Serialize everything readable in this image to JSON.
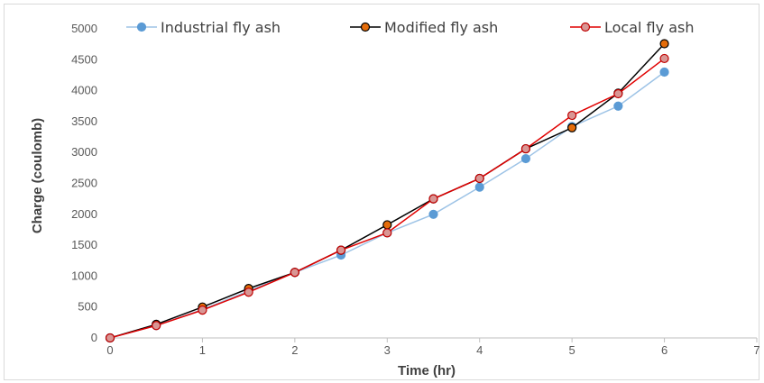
{
  "chart_data": {
    "type": "line",
    "title": "",
    "xlabel": "Time (hr)",
    "ylabel": "Charge (coulomb)",
    "xlim": [
      0,
      7
    ],
    "ylim": [
      0,
      5000
    ],
    "xticks": [
      "0",
      "1",
      "2",
      "3",
      "4",
      "5",
      "6",
      "7"
    ],
    "yticks": [
      "0",
      "500",
      "1000",
      "1500",
      "2000",
      "2500",
      "3000",
      "3500",
      "4000",
      "4500",
      "5000"
    ],
    "x": [
      0,
      0.5,
      1,
      1.5,
      2,
      2.5,
      3,
      3.5,
      4,
      4.5,
      5,
      5.5,
      6
    ],
    "grid": false,
    "legend_position": "top",
    "series": [
      {
        "name": "Industrial fly ash",
        "line_color": "#9dc3e6",
        "marker_fill": "#5b9bd5",
        "marker_stroke": "#5b9bd5",
        "values": [
          0,
          200,
          460,
          760,
          1060,
          1340,
          1700,
          2000,
          2440,
          2900,
          3420,
          3750,
          4300
        ]
      },
      {
        "name": "Modified fly ash",
        "line_color": "#000000",
        "marker_fill": "#e46c0a",
        "marker_stroke": "#000000",
        "values": [
          0,
          220,
          500,
          800,
          1060,
          1420,
          1830,
          2250,
          2580,
          3060,
          3400,
          3960,
          4760
        ]
      },
      {
        "name": "Local fly ash",
        "line_color": "#e00000",
        "marker_fill": "#d99694",
        "marker_stroke": "#c00000",
        "values": [
          0,
          200,
          450,
          740,
          1060,
          1420,
          1700,
          2250,
          2580,
          3060,
          3600,
          3950,
          4520
        ]
      }
    ]
  }
}
